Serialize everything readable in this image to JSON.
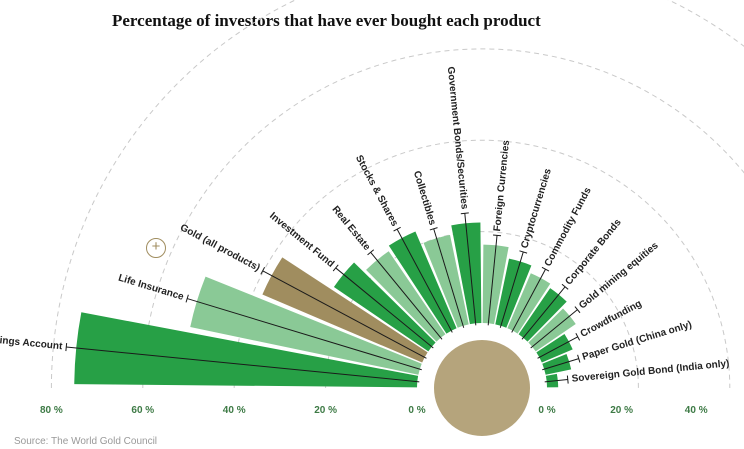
{
  "title": "Percentage of investors that have ever bought each product",
  "source": "Source: The World Gold Council",
  "colors": {
    "dark_green": "#27a046",
    "light_green": "#8ac996",
    "gold": "#a08d5f",
    "hub": "#b5a47c",
    "grid": "#c9c9c9"
  },
  "controls": {
    "expand_icon": "plus-icon"
  },
  "chart_data": {
    "type": "radial-bar",
    "title": "Percentage of investors that have ever bought each product",
    "left_axis": {
      "tick_labels": [
        "80 %",
        "60 %",
        "40 %",
        "20 %",
        "0 %"
      ],
      "range": [
        0,
        80
      ]
    },
    "right_axis": {
      "tick_labels": [
        "0 %",
        "20 %",
        "40 %"
      ],
      "range": [
        0,
        40
      ]
    },
    "bars": [
      {
        "category": "Savings Account",
        "value": 75,
        "color": "dark_green"
      },
      {
        "category": "Life Insurance",
        "value": 51,
        "color": "light_green"
      },
      {
        "category": "Gold (all products)",
        "value": 38,
        "color": "gold"
      },
      {
        "category": "Investment Fund",
        "value": 25,
        "color": "dark_green"
      },
      {
        "category": "Real Estate",
        "value": 22,
        "color": "light_green"
      },
      {
        "category": "Stocks & Shares",
        "value": 23,
        "color": "dark_green"
      },
      {
        "category": "Collectibles",
        "value": 20,
        "color": "light_green"
      },
      {
        "category": "Government Bonds/Securities",
        "value": 22,
        "color": "dark_green"
      },
      {
        "category": "Foreign Currencies",
        "value": 21,
        "color": "light_green"
      },
      {
        "category": "Cryptocurrencies",
        "value": 18,
        "color": "dark_green"
      },
      {
        "category": "Commodity Funds",
        "value": 16,
        "color": "light_green"
      },
      {
        "category": "Corporate Bonds",
        "value": 15,
        "color": "dark_green"
      },
      {
        "category": "Gold mining equities",
        "value": 13,
        "color": "light_green"
      },
      {
        "category": "Crowdfunding",
        "value": 9,
        "color": "dark_green"
      },
      {
        "category": "Paper Gold (China only)",
        "value": 7,
        "color": "dark_green"
      },
      {
        "category": "Sovereign Gold Bond (India only)",
        "value": 3,
        "color": "dark_green"
      }
    ]
  }
}
